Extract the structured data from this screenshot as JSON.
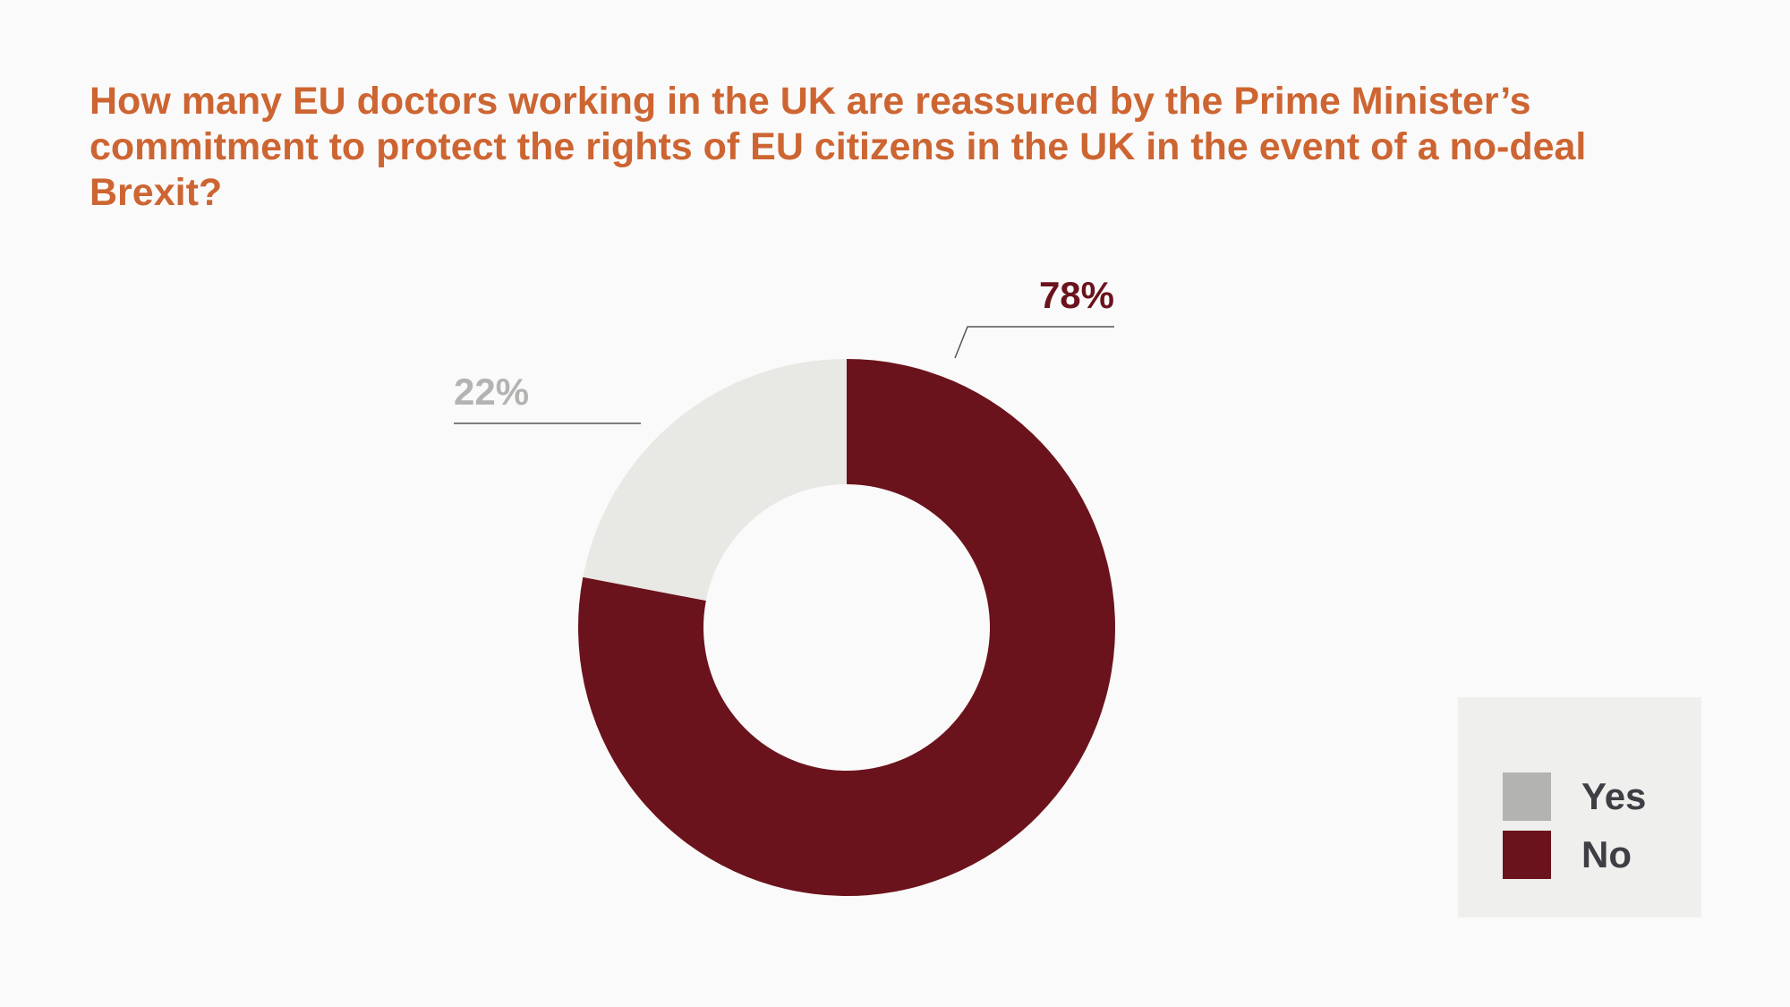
{
  "chart_data": {
    "type": "pie",
    "variant": "donut",
    "title": "How many EU doctors working in the UK are reassured by the Prime Minister’s commitment to protect the rights of EU citizens in the UK in the event of a no-deal Brexit?",
    "slices": [
      {
        "name": "Yes",
        "value": 22,
        "label": "22%",
        "slice_color": "#e8e8e4",
        "legend_color": "#b3b3b1",
        "label_color": "#b3b3b1"
      },
      {
        "name": "No",
        "value": 78,
        "label": "78%",
        "slice_color": "#6b131c",
        "legend_color": "#6b131c",
        "label_color": "#6b131c"
      }
    ],
    "legend": {
      "position": "bottom-right",
      "entries": [
        "Yes",
        "No"
      ]
    }
  }
}
